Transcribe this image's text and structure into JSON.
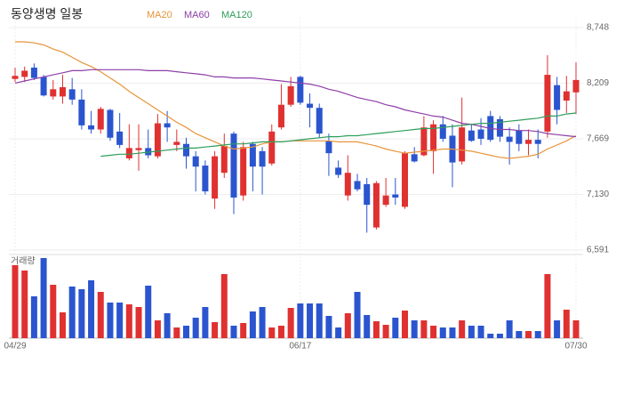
{
  "chart_data": {
    "type": "candlestick",
    "title": "동양생명 일봉",
    "categories": [
      "04/29",
      null,
      null,
      null,
      null,
      null,
      null,
      null,
      null,
      null,
      null,
      null,
      null,
      null,
      null,
      null,
      null,
      null,
      null,
      null,
      null,
      null,
      null,
      null,
      null,
      null,
      null,
      null,
      null,
      null,
      "06/17",
      null,
      null,
      null,
      null,
      null,
      null,
      null,
      null,
      null,
      null,
      null,
      null,
      null,
      null,
      null,
      null,
      null,
      null,
      null,
      null,
      null,
      null,
      null,
      null,
      null,
      null,
      null,
      null,
      "07/30"
    ],
    "open": [
      8250,
      8270,
      8360,
      8270,
      8080,
      8080,
      8150,
      8050,
      7800,
      7760,
      7950,
      7740,
      7480,
      7560,
      7580,
      7500,
      7820,
      7610,
      7620,
      7500,
      7410,
      7090,
      7340,
      7720,
      7120,
      7620,
      7550,
      7430,
      7780,
      8000,
      8270,
      8010,
      7970,
      7650,
      7390,
      7120,
      7260,
      7230,
      6810,
      7030,
      7130,
      7010,
      7520,
      7510,
      7550,
      7810,
      7700,
      7450,
      7750,
      7760,
      7890,
      7860,
      7690,
      7750,
      7620,
      7660,
      7740,
      8190,
      8040,
      8120
    ],
    "high": [
      8360,
      8370,
      8400,
      8290,
      8240,
      8290,
      8260,
      8150,
      7940,
      7980,
      7960,
      7920,
      7810,
      7810,
      7760,
      7910,
      7940,
      7760,
      7680,
      7550,
      7460,
      7550,
      7720,
      7740,
      7640,
      7640,
      7590,
      7810,
      8200,
      8270,
      8280,
      8110,
      8010,
      7720,
      7460,
      7510,
      7330,
      7290,
      7260,
      7290,
      7290,
      7550,
      7590,
      7890,
      7850,
      7890,
      7810,
      8070,
      7810,
      7870,
      7940,
      7890,
      7780,
      7810,
      7760,
      7760,
      8480,
      8270,
      8280,
      8410
    ],
    "low": [
      8220,
      8220,
      8240,
      8080,
      8050,
      8010,
      8000,
      7760,
      7720,
      7720,
      7650,
      7580,
      7460,
      7360,
      7480,
      7480,
      7640,
      7550,
      7380,
      7160,
      7130,
      6990,
      7290,
      6940,
      7070,
      7160,
      7130,
      7410,
      7760,
      7980,
      8000,
      7780,
      7680,
      7310,
      7290,
      7070,
      7160,
      6760,
      6790,
      7010,
      7030,
      6990,
      7440,
      7500,
      7330,
      7640,
      7200,
      7420,
      7640,
      7610,
      7640,
      7640,
      7420,
      7550,
      7510,
      7480,
      7680,
      7810,
      7920,
      7910
    ],
    "close": [
      8280,
      8330,
      8260,
      8090,
      8150,
      8170,
      8050,
      7800,
      7760,
      7960,
      7680,
      7610,
      7580,
      7580,
      7510,
      7820,
      7780,
      7640,
      7500,
      7400,
      7160,
      7500,
      7600,
      7100,
      7590,
      7400,
      7400,
      7740,
      8000,
      8180,
      8020,
      7970,
      7720,
      7530,
      7320,
      7340,
      7180,
      7030,
      7240,
      7120,
      7100,
      7530,
      7450,
      7780,
      7810,
      7670,
      7440,
      7780,
      7650,
      7670,
      7660,
      7690,
      7640,
      7620,
      7660,
      7620,
      8290,
      7950,
      8130,
      8240
    ],
    "series": [
      {
        "name": "MA20",
        "color": "#e8943a",
        "values": [
          8610,
          8610,
          8600,
          8580,
          8540,
          8510,
          8460,
          8410,
          8370,
          8320,
          8260,
          8200,
          8130,
          8070,
          8010,
          7950,
          7890,
          7830,
          7780,
          7720,
          7680,
          7640,
          7600,
          7570,
          7580,
          7590,
          7620,
          7640,
          7640,
          7650,
          7650,
          7650,
          7650,
          7650,
          7640,
          7640,
          7640,
          7620,
          7600,
          7570,
          7550,
          7530,
          7540,
          7550,
          7560,
          7570,
          7570,
          7560,
          7550,
          7530,
          7510,
          7490,
          7480,
          7490,
          7500,
          7520,
          7570,
          7610,
          7650,
          7700
        ]
      },
      {
        "name": "MA60",
        "color": "#8e3fa8",
        "values": [
          8210,
          8230,
          8250,
          8270,
          8290,
          8310,
          8330,
          8330,
          8340,
          8340,
          8340,
          8340,
          8340,
          8340,
          8330,
          8330,
          8330,
          8320,
          8310,
          8300,
          8290,
          8270,
          8270,
          8260,
          8260,
          8260,
          8250,
          8240,
          8230,
          8220,
          8210,
          8200,
          8180,
          8150,
          8130,
          8100,
          8070,
          8050,
          8030,
          8000,
          7980,
          7950,
          7930,
          7910,
          7890,
          7880,
          7850,
          7820,
          7810,
          7790,
          7770,
          7760,
          7760,
          7750,
          7750,
          7740,
          7720,
          7710,
          7700,
          7690
        ]
      },
      {
        "name": "MA120",
        "color": "#2e9e5b",
        "values": [
          null,
          null,
          null,
          null,
          null,
          null,
          null,
          null,
          null,
          7500,
          7510,
          7520,
          7520,
          7530,
          7540,
          7550,
          7560,
          7570,
          7580,
          7580,
          7590,
          7600,
          7610,
          7620,
          7620,
          7630,
          7640,
          7640,
          7640,
          7650,
          7660,
          7670,
          7680,
          7690,
          7690,
          7700,
          7700,
          7710,
          7720,
          7730,
          7740,
          7750,
          7760,
          7770,
          7770,
          7780,
          7790,
          7800,
          7810,
          7820,
          7820,
          7830,
          7840,
          7850,
          7860,
          7870,
          7890,
          7890,
          7910,
          7920
        ]
      }
    ],
    "up_color": "#e03131",
    "down_color": "#2b55cf",
    "volume_label": "거래량",
    "volume": [
      82,
      76,
      47,
      90,
      60,
      29,
      58,
      55,
      65,
      52,
      40,
      40,
      38,
      35,
      59,
      20,
      28,
      12,
      14,
      23,
      35,
      18,
      72,
      14,
      17,
      30,
      35,
      12,
      14,
      34,
      39,
      39,
      39,
      25,
      12,
      28,
      52,
      26,
      19,
      15,
      23,
      31,
      20,
      20,
      14,
      12,
      12,
      20,
      14,
      14,
      5,
      5,
      20,
      8,
      8,
      8,
      72,
      20,
      32,
      20
    ],
    "ylim": [
      6591,
      8748
    ],
    "yticks": [
      {
        "value": 6591,
        "label": "6,591"
      },
      {
        "value": 7130,
        "label": "7,130"
      },
      {
        "value": 7669,
        "label": "7,669"
      },
      {
        "value": 8209,
        "label": "8,209"
      },
      {
        "value": 8748,
        "label": "8,748"
      }
    ],
    "grid": true
  }
}
